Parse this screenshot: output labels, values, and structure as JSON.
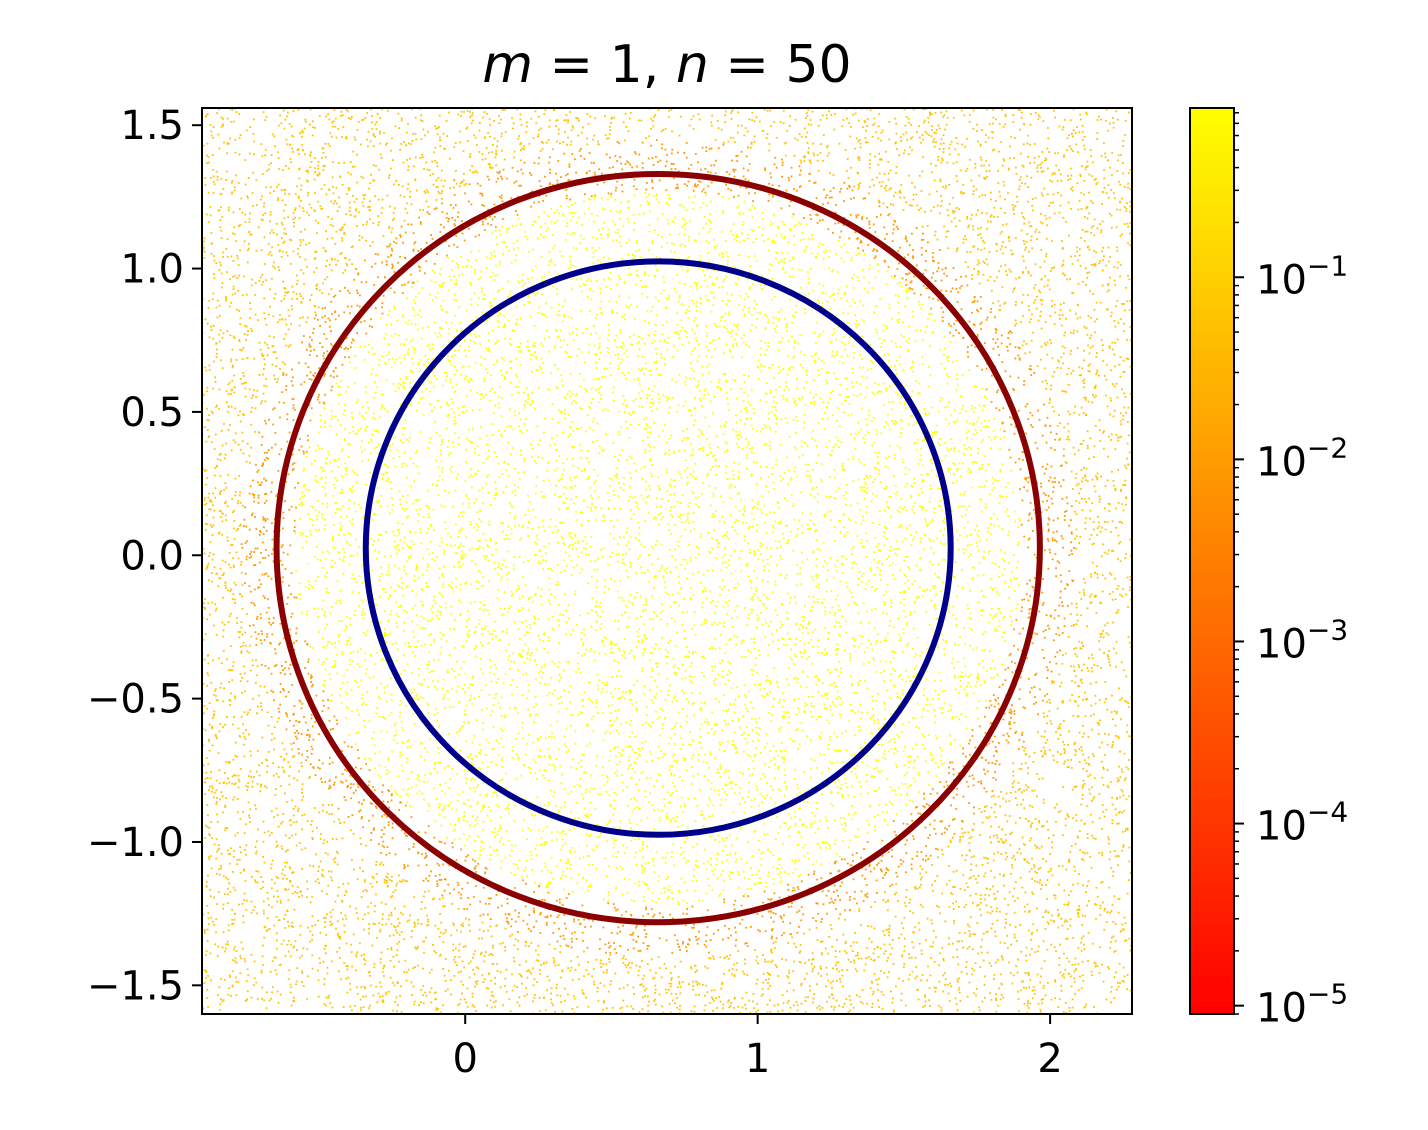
{
  "chart_data": {
    "type": "scatter",
    "title": "m = 1, n = 50",
    "title_parts": {
      "m_sym": "m",
      "m_val": "1,",
      "n_sym": "n",
      "n_val": "50"
    },
    "xlabel": "",
    "ylabel": "",
    "xlim": [
      -0.9,
      2.28
    ],
    "ylim": [
      -1.6,
      1.56
    ],
    "x_ticks": [
      0,
      1,
      2
    ],
    "x_tick_labels": [
      "0",
      "1",
      "2"
    ],
    "y_ticks": [
      1.5,
      1.0,
      0.5,
      0.0,
      -0.5,
      -1.0,
      -1.5
    ],
    "y_tick_labels": [
      "1.5",
      "1.0",
      "0.5",
      "0.0",
      "−0.5",
      "−1.0",
      "−1.5"
    ],
    "grid": false,
    "circles": [
      {
        "center": [
          0.66,
          0.025
        ],
        "radius": 1.305,
        "color": "#8b0000"
      },
      {
        "center": [
          0.66,
          0.025
        ],
        "radius": 1.0,
        "color": "#00008b"
      }
    ],
    "scatter_field": {
      "center": [
        0.66,
        0.025
      ],
      "inner_color": "#ffff00",
      "outer_color": "#ffc400",
      "ring_color": "#ff9a00"
    },
    "colorbar": {
      "scale": "log",
      "range": [
        9e-06,
        0.85
      ],
      "colormap": "autumn",
      "color_min": "#ff0000",
      "color_max": "#ffff00",
      "ticks": [
        {
          "value": 0.1,
          "base": "10",
          "exp": "−1"
        },
        {
          "value": 0.01,
          "base": "10",
          "exp": "−2"
        },
        {
          "value": 0.001,
          "base": "10",
          "exp": "−3"
        },
        {
          "value": 0.0001,
          "base": "10",
          "exp": "−4"
        },
        {
          "value": 1e-05,
          "base": "10",
          "exp": "−5"
        }
      ]
    }
  }
}
